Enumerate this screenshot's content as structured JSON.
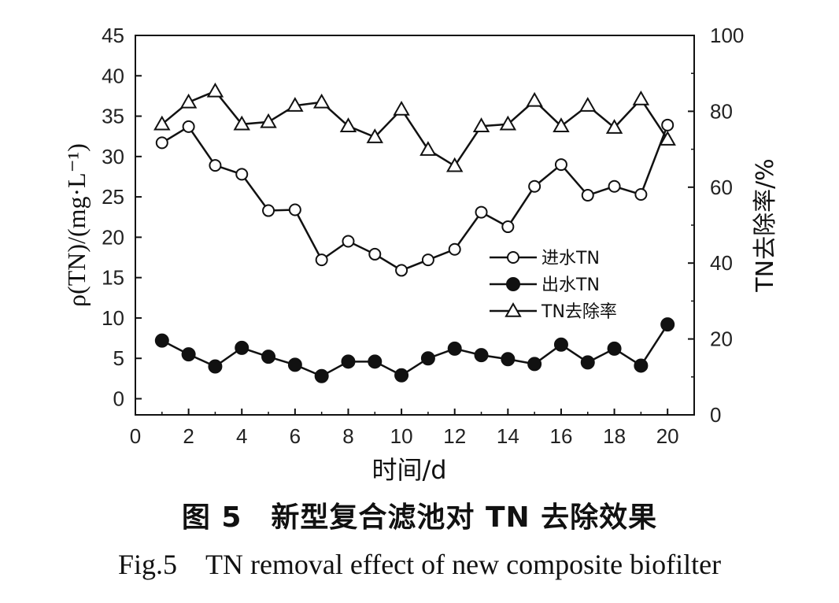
{
  "chart_data": {
    "type": "line",
    "xlabel": "时间/d",
    "ylabel": "ρ(TN)/(mg·L⁻¹)",
    "y2label": "TN去除率/%",
    "xlim": [
      0,
      21
    ],
    "ylim": [
      -2,
      45
    ],
    "y2lim": [
      0,
      100
    ],
    "xticks": [
      0,
      2,
      4,
      6,
      8,
      10,
      12,
      14,
      16,
      18,
      20
    ],
    "yticks": [
      0,
      5,
      10,
      15,
      20,
      25,
      30,
      35,
      40,
      45
    ],
    "y2ticks": [
      0,
      20,
      40,
      60,
      80,
      100
    ],
    "grid": false,
    "legend_position": "center-right",
    "x": [
      1,
      2,
      3,
      4,
      5,
      6,
      7,
      8,
      9,
      10,
      11,
      12,
      13,
      14,
      15,
      16,
      17,
      18,
      19,
      20
    ],
    "series": [
      {
        "name": "进水TN",
        "axis": "left",
        "marker": "open-circle",
        "values": [
          31.7,
          33.7,
          28.9,
          27.8,
          23.3,
          23.4,
          17.2,
          19.5,
          17.9,
          15.9,
          17.2,
          18.5,
          23.1,
          21.3,
          26.3,
          29.0,
          25.2,
          26.3,
          25.3,
          33.9
        ]
      },
      {
        "name": "出水TN",
        "axis": "left",
        "marker": "filled-circle",
        "values": [
          7.2,
          5.5,
          4.0,
          6.3,
          5.2,
          4.2,
          2.8,
          4.6,
          4.6,
          2.9,
          5.0,
          6.2,
          5.4,
          4.9,
          4.3,
          6.7,
          4.5,
          6.2,
          4.1,
          9.2
        ]
      },
      {
        "name": "TN去除率",
        "axis": "right",
        "marker": "open-triangle",
        "values": [
          76.6,
          82.4,
          85.3,
          76.6,
          77.2,
          81.5,
          82.4,
          76.1,
          73.2,
          80.5,
          69.9,
          65.6,
          76.1,
          76.6,
          82.8,
          76.1,
          81.5,
          75.7,
          83.2,
          72.6
        ]
      }
    ]
  },
  "caption": {
    "cn": "图 5　新型复合滤池对 TN 去除效果",
    "en": "Fig.5　TN removal effect of new composite biofilter"
  }
}
